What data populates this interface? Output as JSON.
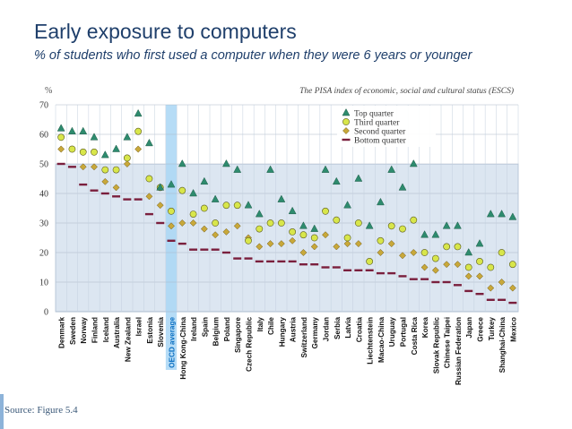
{
  "slide": {
    "title": "Early exposure to computers",
    "subtitle": "% of students who first used a computer when they were 6 years or younger",
    "source": "Source: Figure 5.4"
  },
  "colors": {
    "title": "#1f3f6b",
    "band_above_50": "#ffffff",
    "band_below_50": "#dce6f1",
    "oecd_highlight": "#a9d6f5",
    "top_quarter": "#2e8b6e",
    "third_quarter": "#d8e64a",
    "second_quarter": "#c8a83a",
    "bottom_quarter": "#7a1f3d"
  },
  "chart_data": {
    "type": "scatter",
    "ylabel": "%",
    "annotation": "The PISA index of economic, social and cultural status (ESCS)",
    "ylim": [
      0,
      70
    ],
    "yticks": [
      0,
      10,
      20,
      30,
      40,
      50,
      60,
      70
    ],
    "highlighted_category": "OECD average",
    "legend_position": "top-right",
    "categories": [
      "Denmark",
      "Sweden",
      "Norway",
      "Finland",
      "Iceland",
      "Australia",
      "New Zealand",
      "Israel",
      "Estonia",
      "Slovenia",
      "OECD average",
      "Hong Kong-China",
      "Ireland",
      "Spain",
      "Belgium",
      "Poland",
      "Singapore",
      "Czech Republic",
      "Italy",
      "Chile",
      "Hungary",
      "Austria",
      "Switzerland",
      "Germany",
      "Jordan",
      "Serbia",
      "Latvia",
      "Croatia",
      "Liechtenstein",
      "Macao-China",
      "Uruguay",
      "Portugal",
      "Costa Rica",
      "Korea",
      "Slovak Republic",
      "Chinese Taipei",
      "Russian Federation",
      "Japan",
      "Greece",
      "Turkey",
      "Shanghai-China",
      "Mexico"
    ],
    "series": [
      {
        "name": "Top quarter",
        "marker": "triangle",
        "values": [
          62,
          61,
          61,
          59,
          53,
          55,
          59,
          67,
          57,
          42,
          43,
          50,
          40,
          44,
          38,
          50,
          48,
          36,
          33,
          48,
          38,
          34,
          29,
          28,
          48,
          44,
          36,
          45,
          29,
          37,
          48,
          42,
          50,
          26,
          26,
          29,
          29,
          20,
          23,
          33,
          33,
          32
        ]
      },
      {
        "name": "Third quarter",
        "marker": "circle",
        "values": [
          59,
          55,
          54,
          54,
          48,
          48,
          52,
          61,
          45,
          42,
          34,
          41,
          33,
          35,
          30,
          36,
          36,
          24,
          28,
          30,
          30,
          27,
          26,
          25,
          34,
          31,
          25,
          30,
          17,
          24,
          29,
          28,
          31,
          20,
          18,
          22,
          22,
          15,
          17,
          15,
          20,
          16
        ]
      },
      {
        "name": "Second quarter",
        "marker": "diamond",
        "values": [
          55,
          55,
          49,
          49,
          44,
          42,
          50,
          55,
          39,
          36,
          29,
          30,
          30,
          28,
          26,
          27,
          29,
          25,
          22,
          23,
          23,
          24,
          20,
          22,
          26,
          22,
          23,
          23,
          17,
          20,
          23,
          19,
          20,
          15,
          14,
          16,
          16,
          12,
          12,
          8,
          10,
          8
        ]
      },
      {
        "name": "Bottom quarter",
        "marker": "dash",
        "values": [
          50,
          49,
          43,
          41,
          40,
          39,
          38,
          38,
          33,
          30,
          24,
          23,
          21,
          21,
          21,
          20,
          18,
          18,
          17,
          17,
          17,
          17,
          16,
          16,
          15,
          15,
          14,
          14,
          14,
          13,
          13,
          12,
          11,
          11,
          10,
          10,
          9,
          7,
          6,
          4,
          4,
          3
        ]
      }
    ]
  }
}
